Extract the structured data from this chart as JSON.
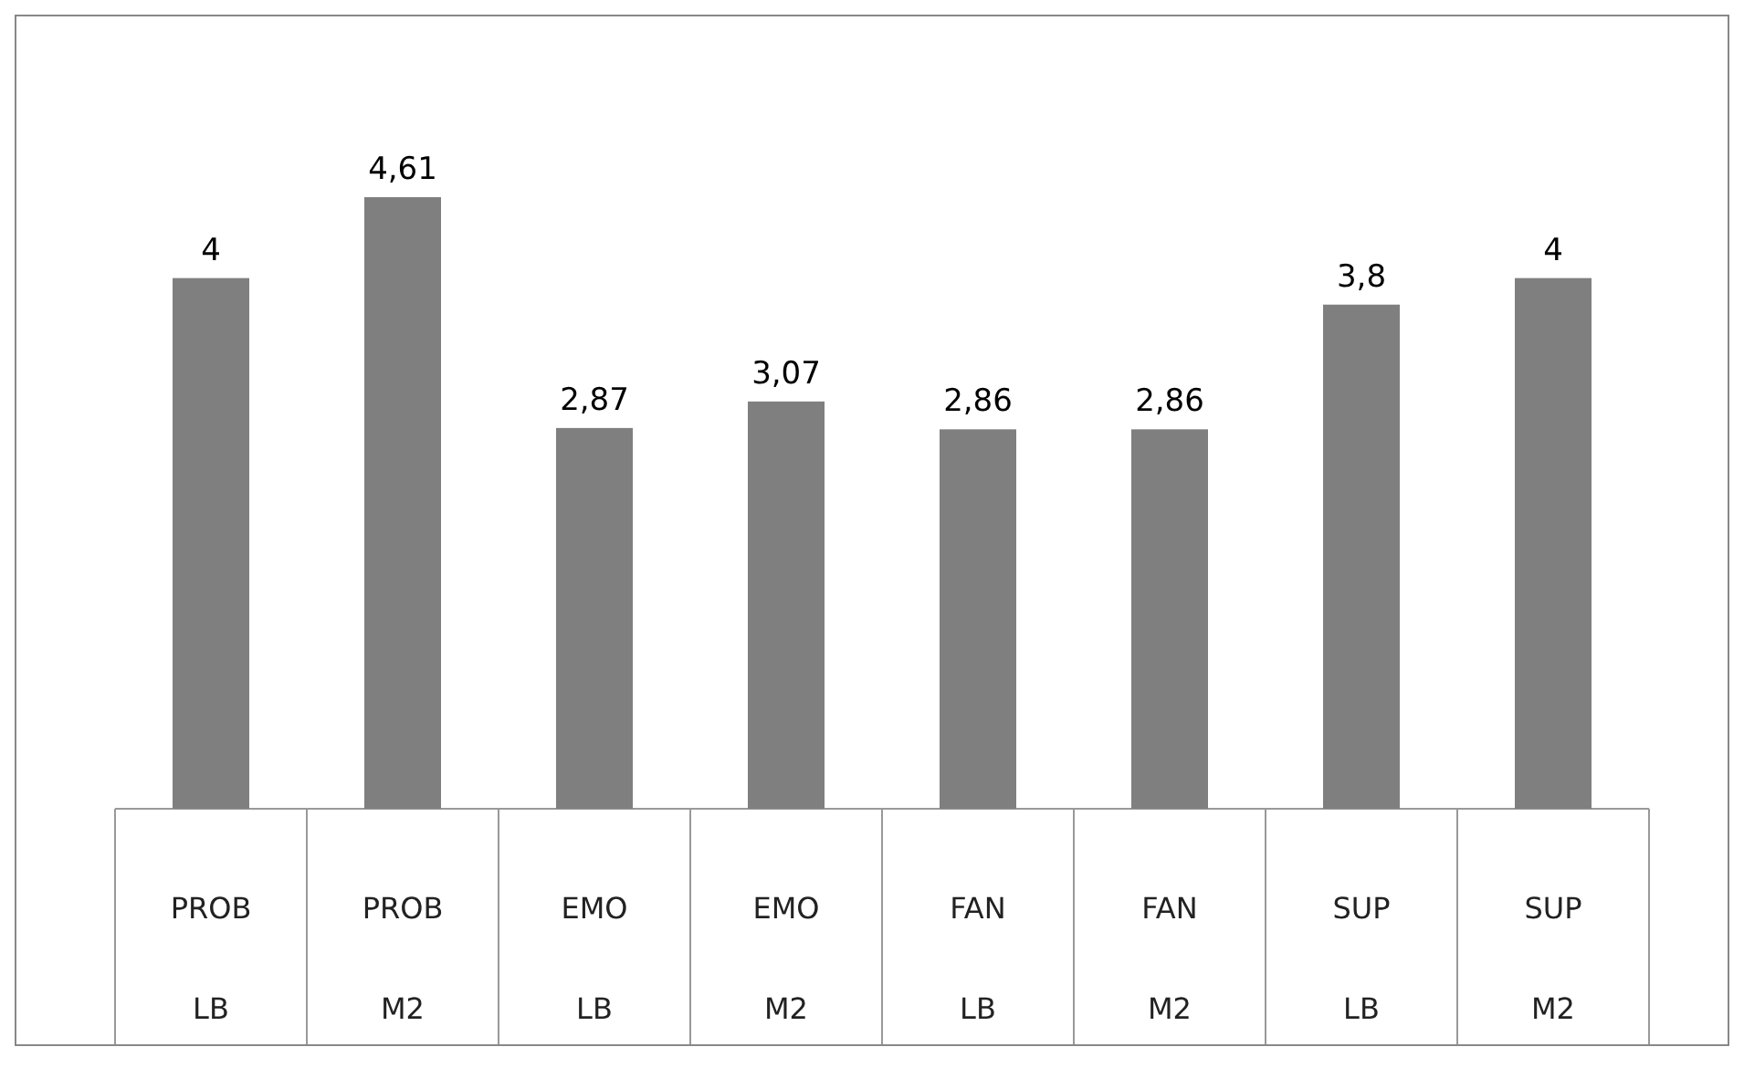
{
  "chart_data": {
    "type": "bar",
    "categories": [
      "PROB LB",
      "PROB M2",
      "EMO LB",
      "EMO M2",
      "FAN LB",
      "FAN M2",
      "SUP LB",
      "SUP M2"
    ],
    "values": [
      4,
      4.61,
      2.87,
      3.07,
      2.86,
      2.86,
      3.8,
      4
    ],
    "value_labels": [
      "4",
      "4,61",
      "2,87",
      "3,07",
      "2,86",
      "2,86",
      "3,8",
      "4"
    ],
    "color": "#7f7f7f"
  }
}
